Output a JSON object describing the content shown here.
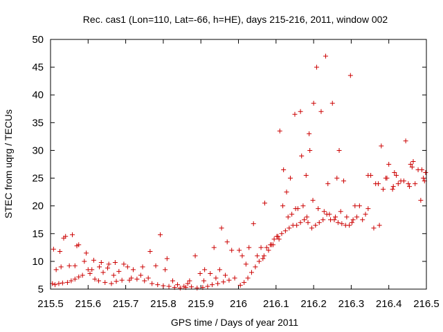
{
  "chart_data": {
    "type": "scatter",
    "title": "Rec. cas1 (Lon=110, Lat=-66, h=HE), days 215-216, 2011, window 002",
    "xlabel": "GPS time / Days of year 2011",
    "ylabel": "STEC from uqrg / TECUs",
    "xlim": [
      215.5,
      216.5
    ],
    "ylim": [
      5,
      50
    ],
    "xticks": [
      215.5,
      215.6,
      215.7,
      215.8,
      215.9,
      216,
      216.1,
      216.2,
      216.3,
      216.4,
      216.5
    ],
    "xtick_labels": [
      "215.5",
      "215.6",
      "215.7",
      "215.8",
      "215.9",
      "216",
      "216.1",
      "216.2",
      "216.3",
      "216.4",
      "216.5"
    ],
    "yticks": [
      5,
      10,
      15,
      20,
      25,
      30,
      35,
      40,
      45,
      50
    ],
    "ytick_labels": [
      "5",
      "10",
      "15",
      "20",
      "25",
      "30",
      "35",
      "40",
      "45",
      "50"
    ],
    "grid": false,
    "legend": "none",
    "marker": "plus",
    "color": "#cc0000",
    "series": [
      {
        "x": [
          215.505,
          215.512,
          215.522,
          215.532,
          215.545,
          215.555,
          215.565,
          215.575,
          215.585,
          215.605,
          215.618,
          215.628,
          215.645,
          215.662,
          215.675,
          215.69,
          215.71,
          215.73,
          215.75,
          215.77,
          215.785,
          215.8,
          215.815,
          215.83,
          215.845,
          215.86,
          215.875,
          215.89,
          215.905,
          215.918,
          215.93,
          215.945,
          215.96,
          215.975,
          215.99,
          216.005,
          216.015,
          216.025,
          216.035,
          216.045,
          216.055,
          216.065,
          216.075,
          216.085,
          216.095,
          216.105,
          216.115,
          216.125,
          216.135,
          216.145,
          216.155,
          216.165,
          216.175,
          216.185,
          216.195,
          216.205,
          216.215,
          216.225,
          216.235,
          216.245,
          216.255,
          216.265,
          216.275,
          216.285,
          216.295,
          216.305,
          216.315,
          216.33,
          216.345,
          216.36,
          216.375,
          216.385,
          216.395,
          216.41,
          216.425,
          216.44,
          216.455,
          216.47,
          216.485,
          216.495,
          215.508,
          215.525,
          215.54,
          215.558,
          215.575,
          215.595,
          215.615,
          215.635,
          215.655,
          215.672,
          215.695,
          215.72,
          215.745,
          215.765,
          215.792,
          215.81,
          215.838,
          215.855,
          215.885,
          215.91,
          215.935,
          215.955,
          215.982,
          216.002,
          216.028,
          216.05,
          216.068,
          216.088,
          216.102,
          216.118,
          216.128,
          216.142,
          216.158,
          216.172,
          216.182,
          216.198,
          216.212,
          216.228,
          216.242,
          216.258,
          216.272,
          216.288,
          216.302,
          216.322,
          216.352,
          216.372,
          216.392,
          216.412,
          216.432,
          216.452,
          216.462,
          216.478,
          216.492,
          215.515,
          215.535,
          215.55,
          215.57,
          215.59,
          215.61,
          215.63,
          215.652,
          215.682,
          215.705,
          215.74,
          215.78,
          215.805,
          215.87,
          215.898,
          215.925,
          215.95,
          215.97,
          216.01,
          216.04,
          216.06,
          216.08,
          216.11,
          216.12,
          216.138,
          216.15,
          216.165,
          216.18,
          216.19,
          216.2,
          216.22,
          216.238,
          216.25,
          216.262,
          216.28,
          216.31,
          216.338,
          216.365,
          216.4,
          216.42,
          216.445,
          216.465,
          216.498,
          215.528,
          215.565,
          215.6,
          215.64,
          215.668,
          215.715,
          215.76,
          215.825,
          215.865,
          215.908,
          215.94,
          215.965,
          216.02,
          216.07,
          216.092,
          216.108,
          216.132,
          216.152,
          216.168,
          216.188,
          216.208,
          216.232,
          216.268,
          216.298,
          216.345,
          216.38,
          216.415,
          216.458,
          216.488
        ],
        "y": [
          6.0,
          5.8,
          6.0,
          6.1,
          6.2,
          6.5,
          6.8,
          7.2,
          7.5,
          7.8,
          6.8,
          6.5,
          6.2,
          6.0,
          6.4,
          6.6,
          6.6,
          6.8,
          6.5,
          6.0,
          5.8,
          5.6,
          5.5,
          5.3,
          5.2,
          5.3,
          5.4,
          5.2,
          5.3,
          5.5,
          5.8,
          6.0,
          6.3,
          6.6,
          7.0,
          5.7,
          6.2,
          7.0,
          8.0,
          9.0,
          10.0,
          10.5,
          12.5,
          13.0,
          14.0,
          14.5,
          15.0,
          15.5,
          16.0,
          16.5,
          16.5,
          17.0,
          17.5,
          17.0,
          16.0,
          16.5,
          17.0,
          17.5,
          18.5,
          17.5,
          17.5,
          17.0,
          16.8,
          16.5,
          16.5,
          17.5,
          18.0,
          17.5,
          19.5,
          16.0,
          16.5,
          23.0,
          25.0,
          23.0,
          24.0,
          24.5,
          23.5,
          24.0,
          21.0,
          24.5,
          12.2,
          11.8,
          14.5,
          14.8,
          13.0,
          11.5,
          10.2,
          9.8,
          9.5,
          9.8,
          9.5,
          8.5,
          9.0,
          11.8,
          14.8,
          10.5,
          5.8,
          5.5,
          11.0,
          8.5,
          12.5,
          16.0,
          12.0,
          12.0,
          12.5,
          11.0,
          11.0,
          13.0,
          14.5,
          20.0,
          22.5,
          18.5,
          19.5,
          20.0,
          18.0,
          21.0,
          19.5,
          19.0,
          18.5,
          18.0,
          19.0,
          18.0,
          17.0,
          20.0,
          25.5,
          24.0,
          25.0,
          23.5,
          24.5,
          24.0,
          27.0,
          26.5,
          25.0,
          8.5,
          14.2,
          9.2,
          12.8,
          10.0,
          8.5,
          9.0,
          8.8,
          8.2,
          9.0,
          7.5,
          9.2,
          8.5,
          6.5,
          7.8,
          7.8,
          8.5,
          13.5,
          11.0,
          16.8,
          12.5,
          12.0,
          33.5,
          26.5,
          25.0,
          36.5,
          37.0,
          25.5,
          30.0,
          38.5,
          37.0,
          24.0,
          38.5,
          25.0,
          24.5,
          20.0,
          18.5,
          24.0,
          27.5,
          25.5,
          31.7,
          28.0,
          26.0,
          9.0,
          9.2,
          8.5,
          8.0,
          7.5,
          7.0,
          7.0,
          6.5,
          6.0,
          6.5,
          7.0,
          7.5,
          9.5,
          20.5,
          13.0,
          14.0,
          18.0,
          19.5,
          29.0,
          33.0,
          45.0,
          47.0,
          30.0,
          43.5,
          25.5,
          30.8,
          26.0,
          27.5,
          26.5
        ]
      }
    ]
  }
}
